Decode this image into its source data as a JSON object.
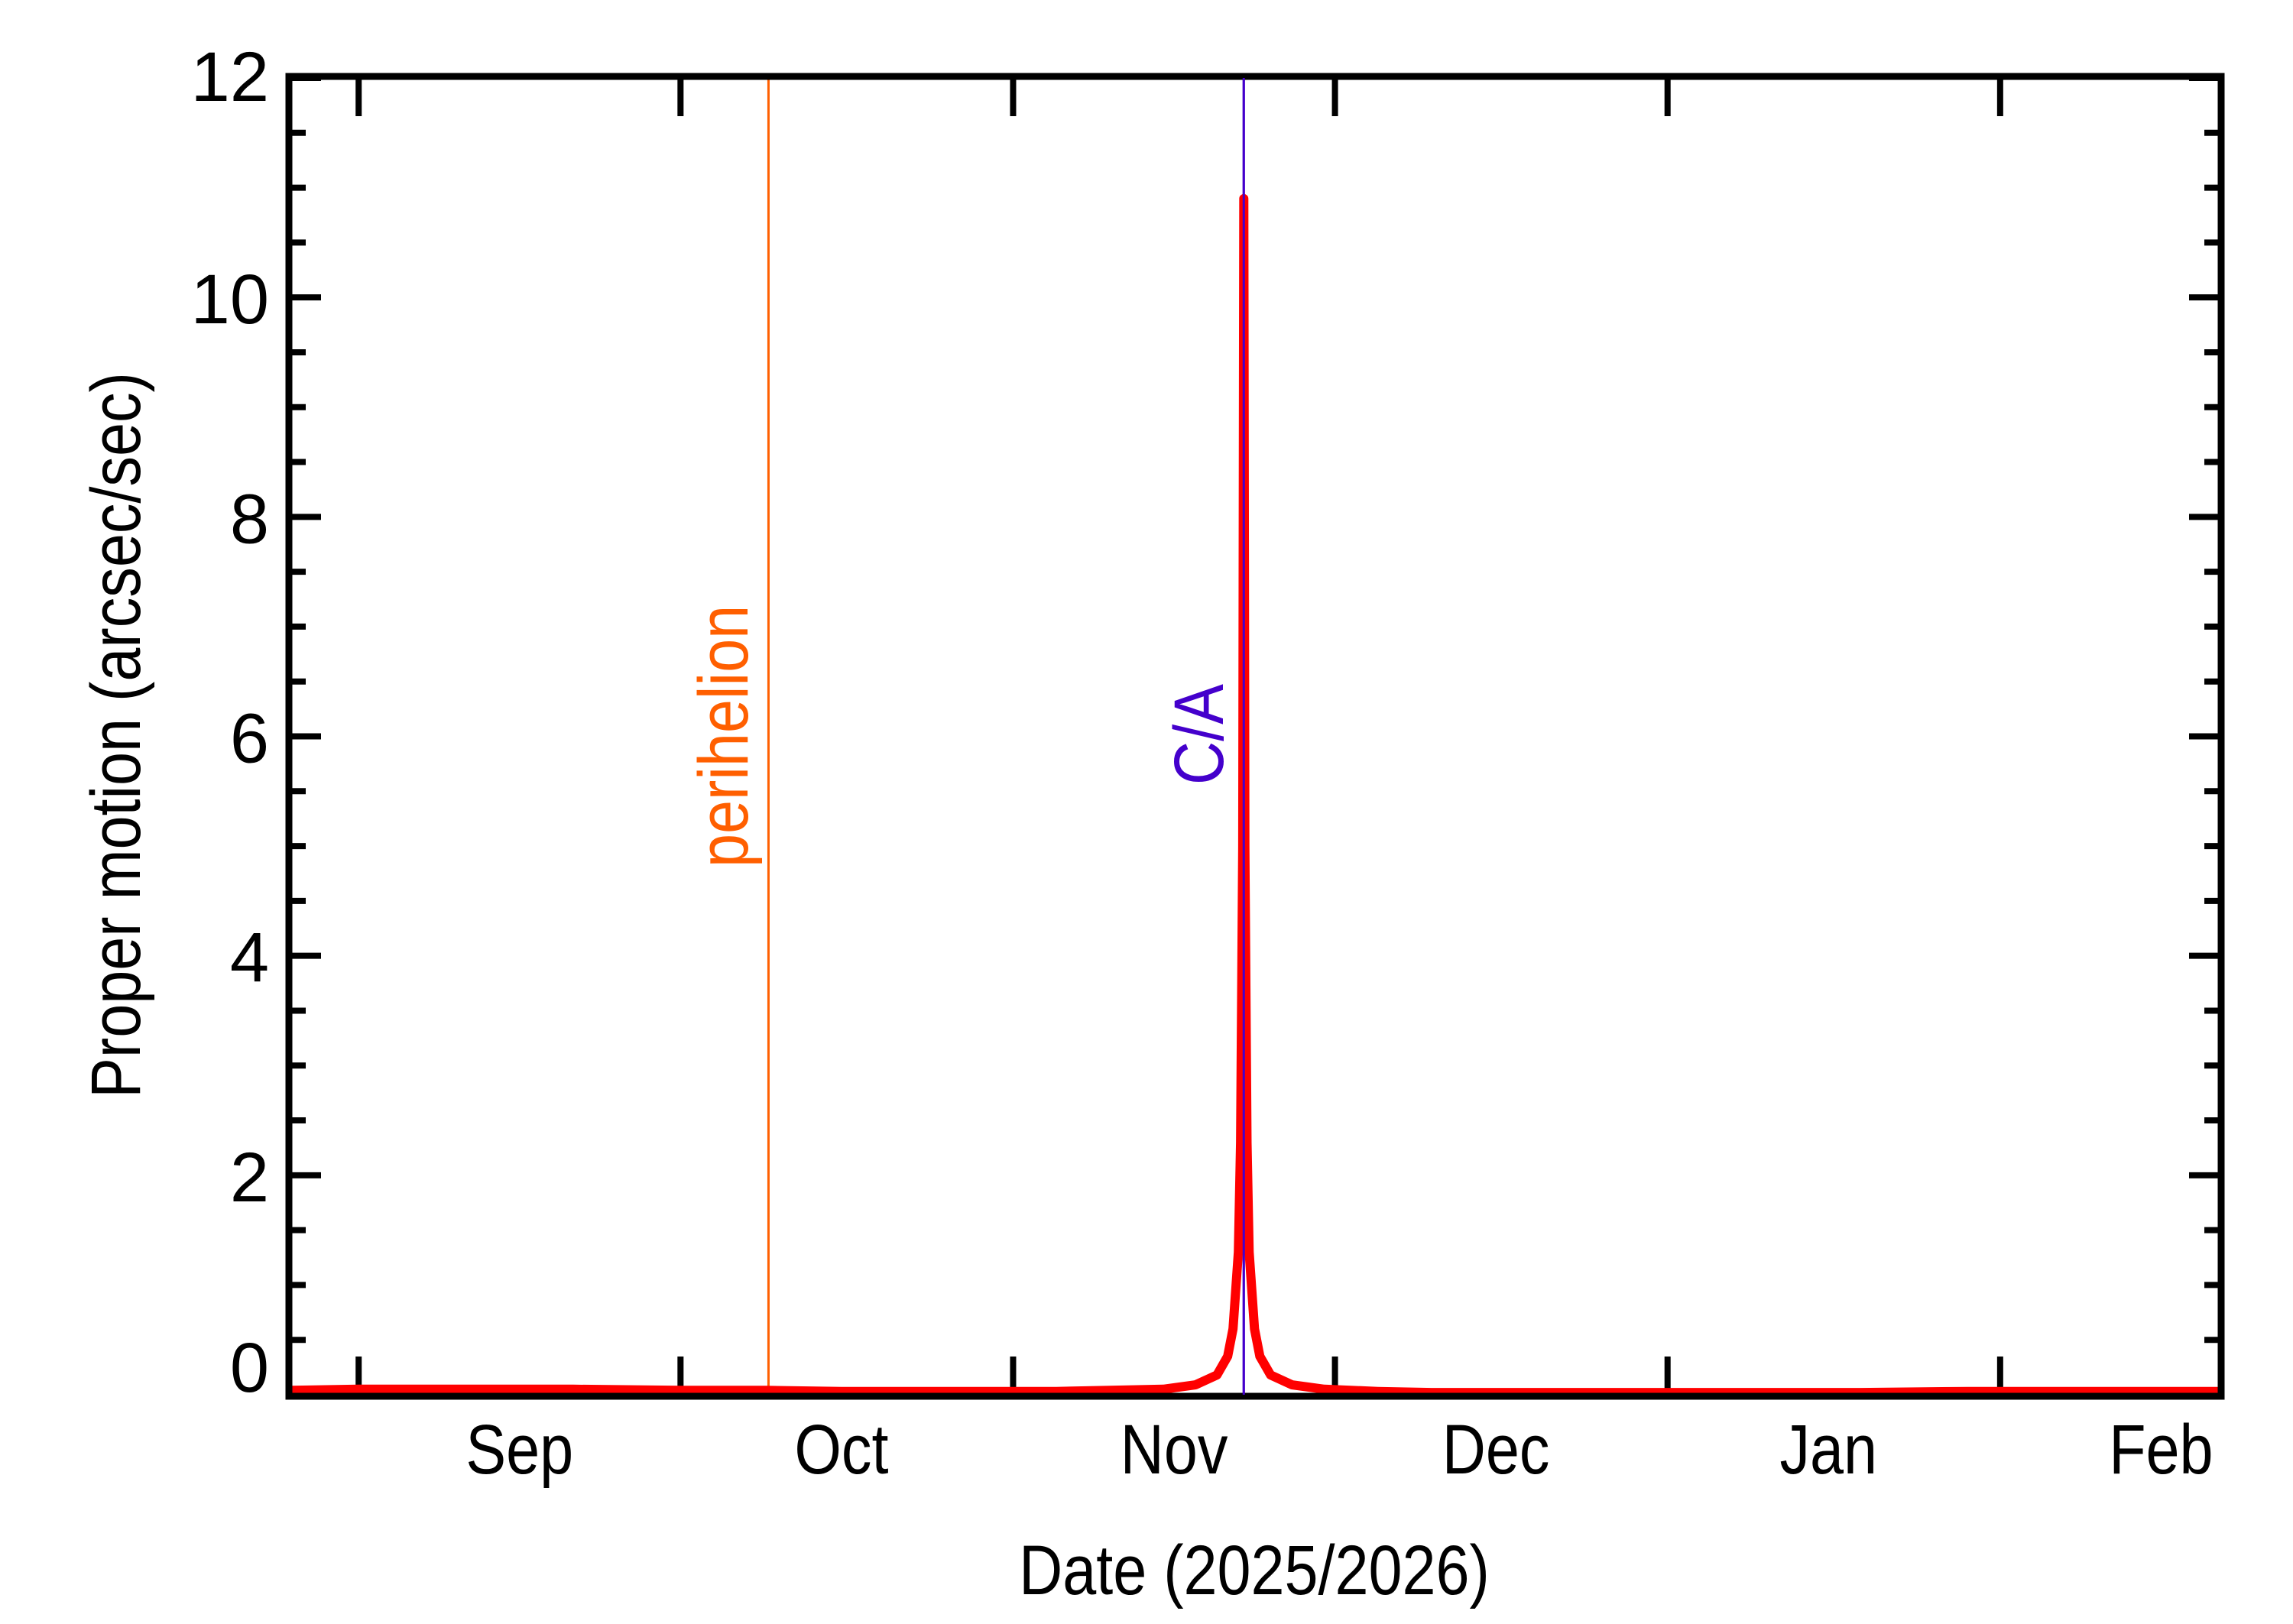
{
  "chart_data": {
    "type": "line",
    "title": "",
    "xlabel": "Date (2025/2026)",
    "ylabel": "Proper motion (arcsec/sec)",
    "ylim": [
      0,
      12
    ],
    "xlim_days_from_sep1": [
      -6.5,
      173.6
    ],
    "grid": false,
    "legend": null,
    "y_ticks": [
      0,
      2,
      4,
      6,
      8,
      10,
      12
    ],
    "y_minor_step": 0.5,
    "x_ticks": [
      {
        "label": "Sep",
        "month_start_day": 0,
        "days": 30
      },
      {
        "label": "Oct",
        "month_start_day": 30,
        "days": 31
      },
      {
        "label": "Nov",
        "month_start_day": 61,
        "days": 30
      },
      {
        "label": "Dec",
        "month_start_day": 91,
        "days": 31
      },
      {
        "label": "Jan",
        "month_start_day": 122,
        "days": 31
      },
      {
        "label": "Feb",
        "month_start_day": 153,
        "days": 28
      }
    ],
    "series": [
      {
        "name": "Proper motion",
        "color": "#FF0000",
        "x_days_from_sep1": [
          -6.5,
          0,
          10,
          20,
          30,
          38,
          45,
          55,
          65,
          70,
          75,
          78,
          80,
          81,
          81.5,
          82,
          82.2,
          82.4,
          82.5,
          82.6,
          82.8,
          83,
          83.5,
          84,
          85,
          87,
          90,
          95,
          100,
          110,
          120,
          130,
          140,
          150,
          160,
          173.6
        ],
        "values": [
          0.04,
          0.05,
          0.05,
          0.05,
          0.04,
          0.04,
          0.03,
          0.03,
          0.03,
          0.04,
          0.05,
          0.09,
          0.18,
          0.35,
          0.6,
          1.3,
          2.3,
          5.0,
          10.9,
          5.0,
          2.3,
          1.3,
          0.6,
          0.35,
          0.18,
          0.09,
          0.05,
          0.03,
          0.02,
          0.02,
          0.02,
          0.02,
          0.02,
          0.03,
          0.03,
          0.03
        ]
      }
    ],
    "annotations": [
      {
        "label": "perihelion",
        "day_from_sep1": 38.2,
        "color": "#FF5F00"
      },
      {
        "label": "C/A",
        "day_from_sep1": 82.5,
        "color": "#4400CC"
      }
    ]
  },
  "labels": {
    "perihelion": "perihelion",
    "ca": "C/A",
    "xlabel": "Date (2025/2026)",
    "ylabel": "Proper motion (arcsec/sec)"
  }
}
